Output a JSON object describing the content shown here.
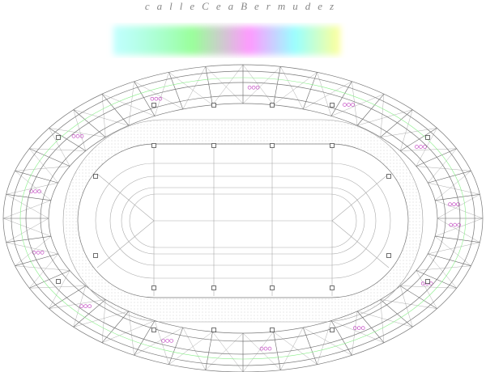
{
  "header": {
    "title": "calleCeaBermudez"
  }
}
